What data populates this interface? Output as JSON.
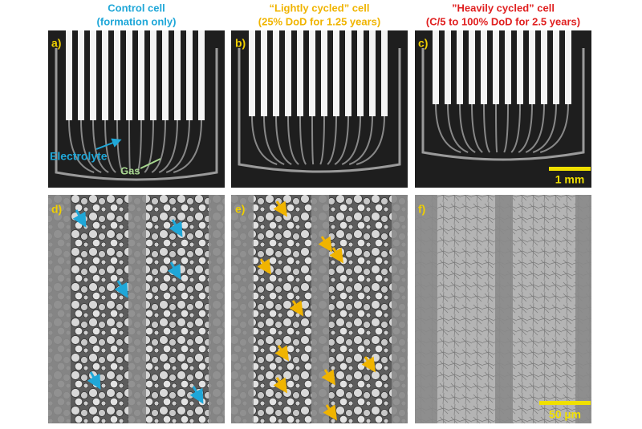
{
  "columns": [
    {
      "title": "Control cell",
      "subtitle": "(formation only)"
    },
    {
      "title": "“Lightly cycled” cell",
      "subtitle": "(25% DoD for 1.25 years)"
    },
    {
      "title": "”Heavily cycled” cell",
      "subtitle": "(C/5 to 100% DoD for 2.5 years)"
    }
  ],
  "panels": [
    {
      "label": "a)"
    },
    {
      "label": "b)"
    },
    {
      "label": "c)"
    },
    {
      "label": "d)"
    },
    {
      "label": "e)"
    },
    {
      "label": "f)"
    }
  ],
  "annotations": {
    "electrolyte": "Electrolyte",
    "gas": "Gas"
  },
  "scale_bars": [
    "1 mm",
    "50 µm"
  ]
}
